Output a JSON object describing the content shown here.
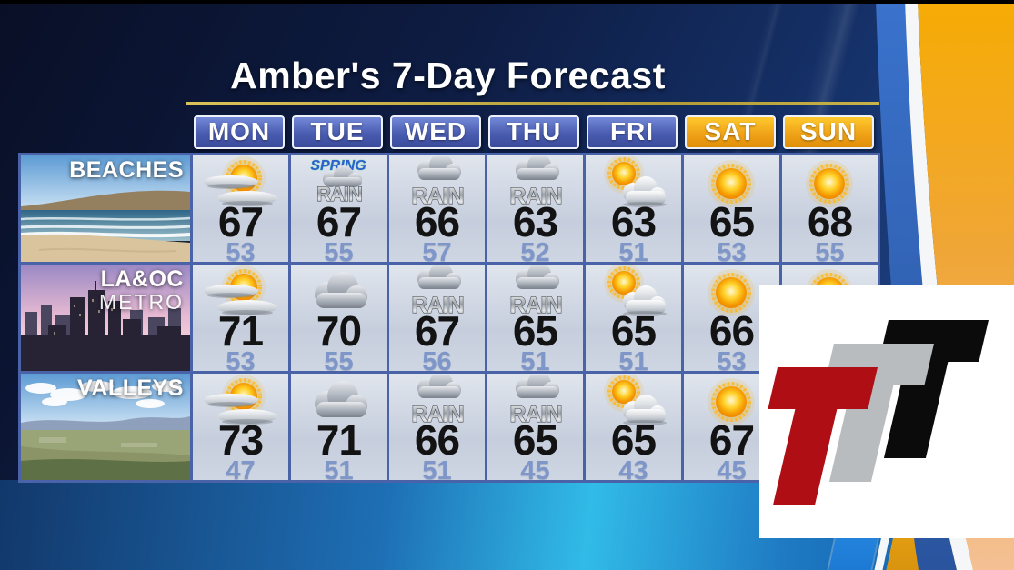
{
  "title": "Amber's 7-Day Forecast",
  "days": [
    {
      "label": "MON",
      "style": "blue"
    },
    {
      "label": "TUE",
      "style": "blue"
    },
    {
      "label": "WED",
      "style": "blue"
    },
    {
      "label": "THU",
      "style": "blue"
    },
    {
      "label": "FRI",
      "style": "blue"
    },
    {
      "label": "SAT",
      "style": "gold"
    },
    {
      "label": "SUN",
      "style": "gold"
    }
  ],
  "icon_labels": {
    "rain": "RAIN",
    "spring": "SPRING"
  },
  "regions": [
    {
      "name": "BEACHES",
      "name2": "",
      "photo": "beach",
      "cells": [
        {
          "icon": "partly-sunny",
          "high": 67,
          "low": 53
        },
        {
          "icon": "spring-rain",
          "high": 67,
          "low": 55
        },
        {
          "icon": "rain",
          "high": 66,
          "low": 57
        },
        {
          "icon": "rain",
          "high": 63,
          "low": 52
        },
        {
          "icon": "sun-cloud",
          "high": 63,
          "low": 51
        },
        {
          "icon": "sunny",
          "high": 65,
          "low": 53
        },
        {
          "icon": "sunny",
          "high": 68,
          "low": 55
        }
      ]
    },
    {
      "name": "LA&OC",
      "name2": "METRO",
      "photo": "metro",
      "cells": [
        {
          "icon": "partly-sunny",
          "high": 71,
          "low": 53
        },
        {
          "icon": "cloudy",
          "high": 70,
          "low": 55
        },
        {
          "icon": "rain",
          "high": 67,
          "low": 56
        },
        {
          "icon": "rain",
          "high": 65,
          "low": 51
        },
        {
          "icon": "sun-cloud",
          "high": 65,
          "low": 51
        },
        {
          "icon": "sunny",
          "high": 66,
          "low": 53
        },
        {
          "icon": "sunny",
          "high": null,
          "low": null
        }
      ]
    },
    {
      "name": "VALLEYS",
      "name2": "",
      "photo": "valleys",
      "cells": [
        {
          "icon": "partly-sunny",
          "high": 73,
          "low": 47
        },
        {
          "icon": "cloudy",
          "high": 71,
          "low": 51
        },
        {
          "icon": "rain",
          "high": 66,
          "low": 51
        },
        {
          "icon": "rain",
          "high": 65,
          "low": 45
        },
        {
          "icon": "sun-cloud",
          "high": 65,
          "low": 43
        },
        {
          "icon": "sunny",
          "high": 67,
          "low": 45
        },
        {
          "icon": "sunny",
          "high": null,
          "low": null
        }
      ]
    }
  ],
  "logo": {
    "letters": [
      "T",
      "T",
      "T"
    ],
    "colors": [
      "#ae0e14",
      "#b9bcbe",
      "#0b0b0b"
    ]
  },
  "colors": {
    "day_blue": "#4a5cb0",
    "day_gold": "#f0a318",
    "grid_blue": "#4a63a8",
    "cell_bg": "#ccd4e2",
    "high_temp": "#131313",
    "low_temp": "#7e96c8",
    "swoosh_orange": "#f6ab04",
    "swoosh_blue": "#3a72cc",
    "underline_gold": "#c8b24a"
  },
  "chart_data": {
    "type": "table",
    "title": "Amber's 7-Day Forecast",
    "columns": [
      "MON",
      "TUE",
      "WED",
      "THU",
      "FRI",
      "SAT",
      "SUN"
    ],
    "rows": [
      {
        "region": "BEACHES",
        "high": [
          67,
          67,
          66,
          63,
          63,
          65,
          68
        ],
        "low": [
          53,
          55,
          57,
          52,
          51,
          53,
          55
        ],
        "conditions": [
          "partly-sunny",
          "spring-rain",
          "rain",
          "rain",
          "sun-cloud",
          "sunny",
          "sunny"
        ]
      },
      {
        "region": "LA&OC METRO",
        "high": [
          71,
          70,
          67,
          65,
          65,
          66,
          null
        ],
        "low": [
          53,
          55,
          56,
          51,
          51,
          53,
          null
        ],
        "conditions": [
          "partly-sunny",
          "cloudy",
          "rain",
          "rain",
          "sun-cloud",
          "sunny",
          "sunny"
        ]
      },
      {
        "region": "VALLEYS",
        "high": [
          73,
          71,
          66,
          65,
          65,
          67,
          null
        ],
        "low": [
          47,
          51,
          51,
          45,
          43,
          45,
          null
        ],
        "conditions": [
          "partly-sunny",
          "cloudy",
          "rain",
          "rain",
          "sun-cloud",
          "sunny",
          "sunny"
        ]
      }
    ]
  }
}
